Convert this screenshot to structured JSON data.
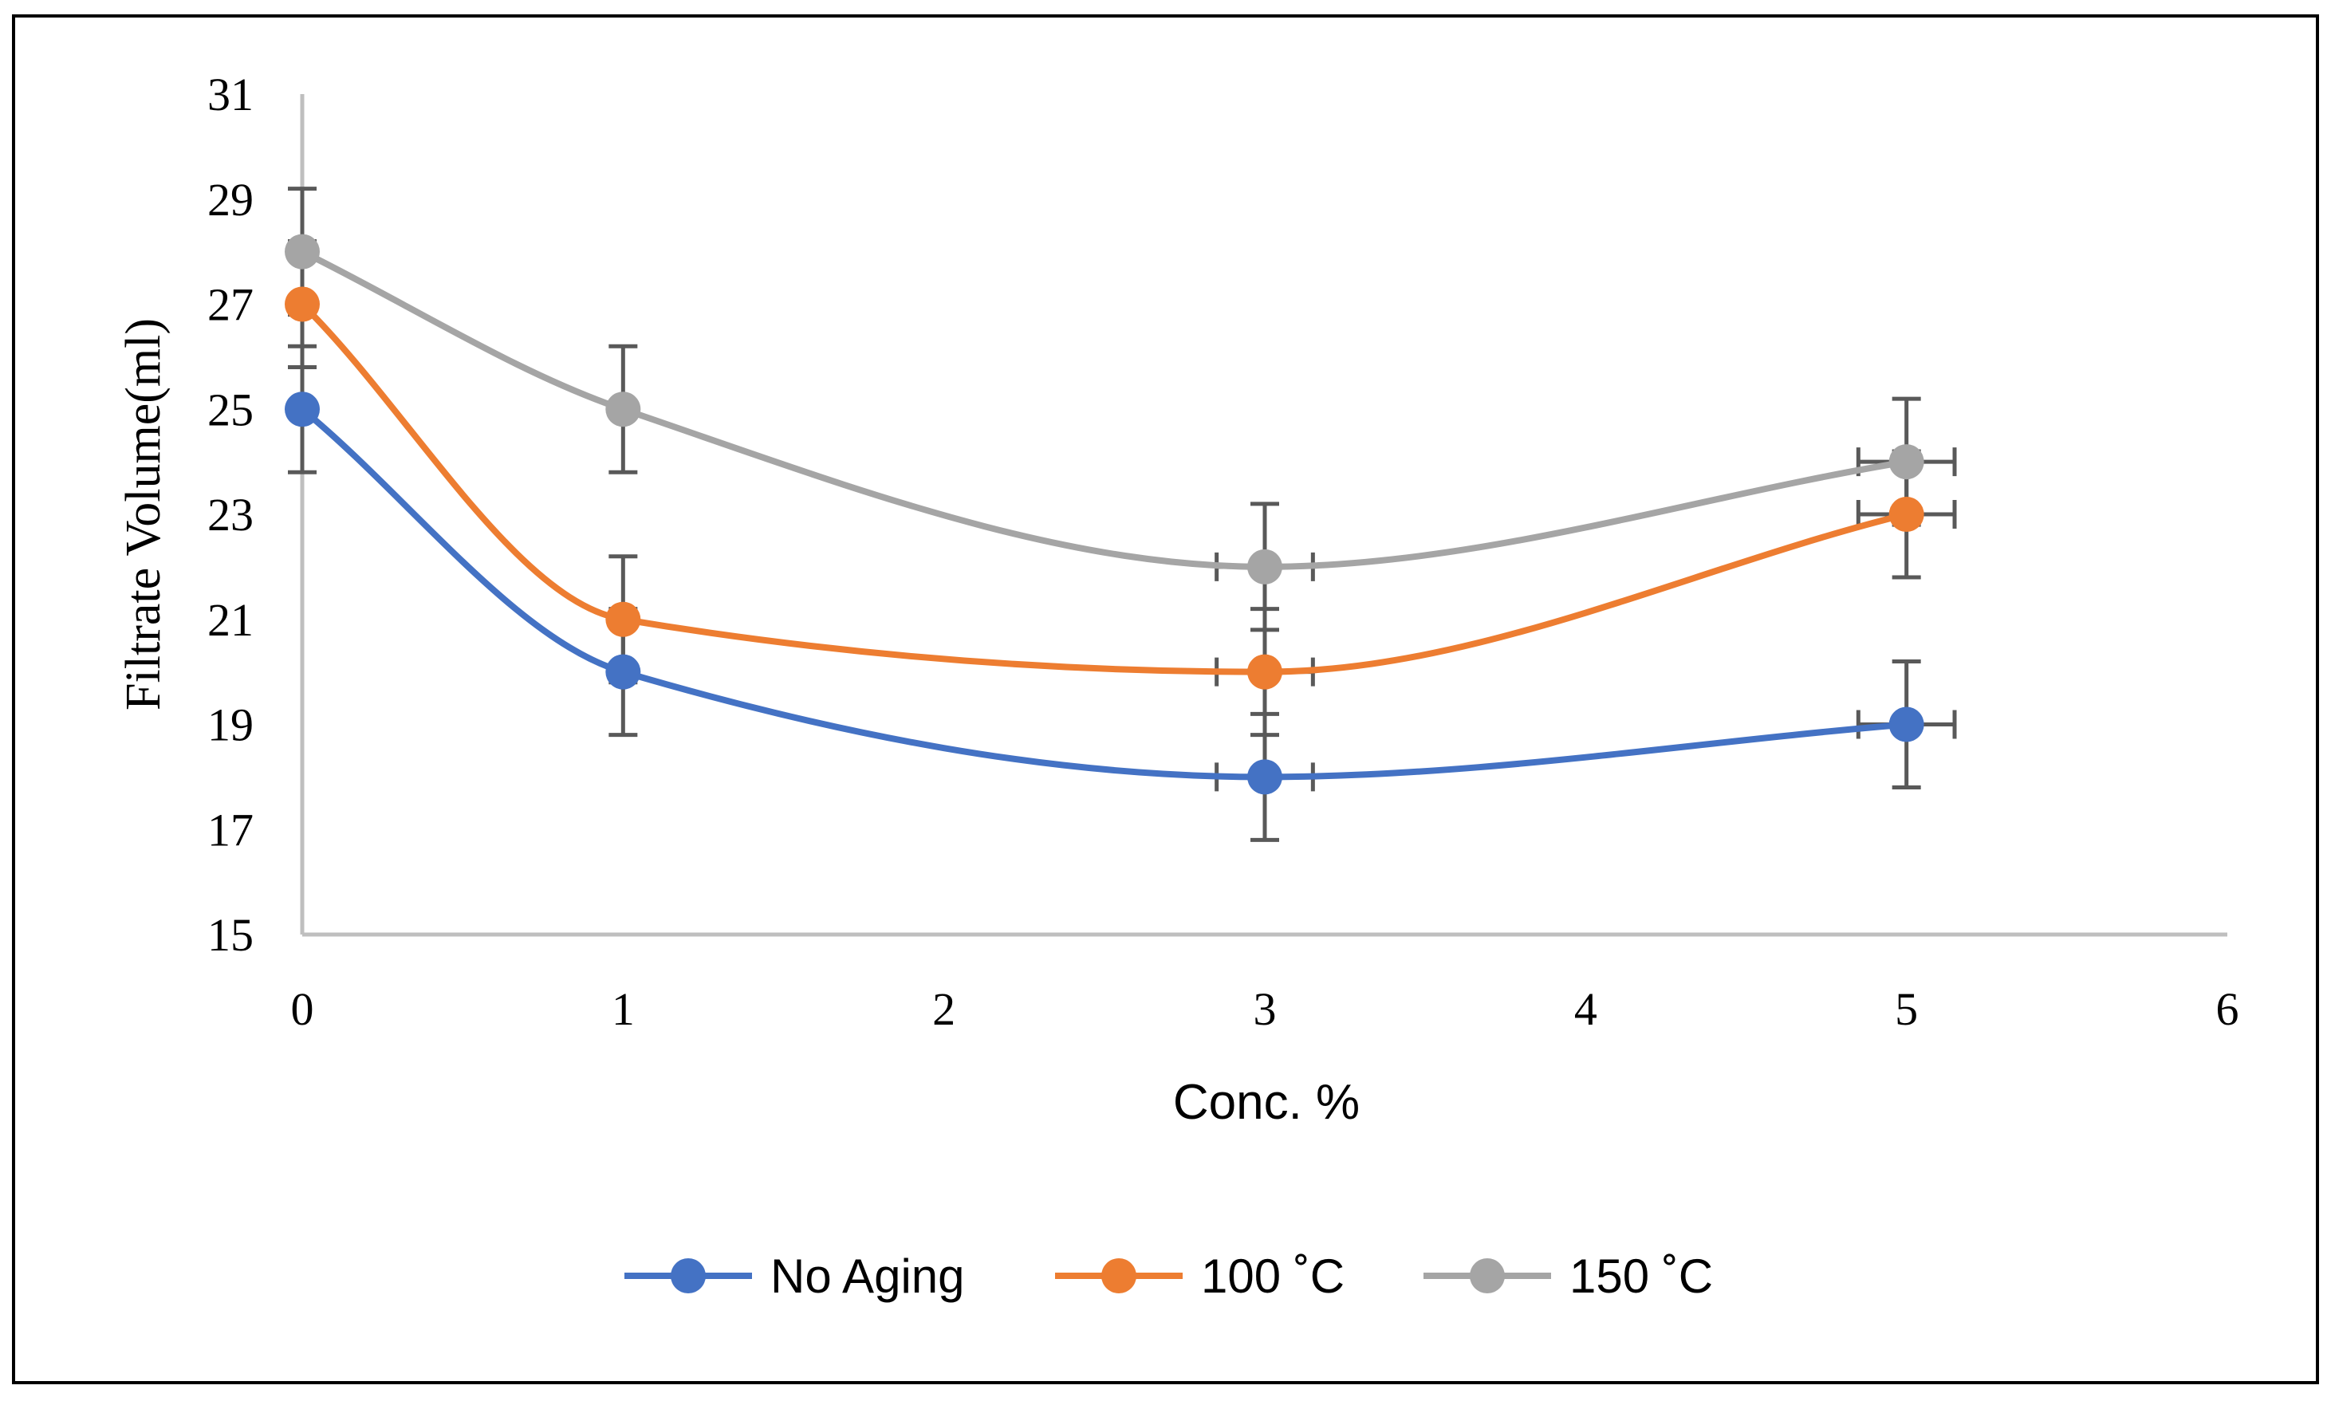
{
  "chart_data": {
    "type": "line",
    "title": "",
    "xlabel": "Conc. %",
    "ylabel": "Filtrate Volume(ml)",
    "xlim": [
      0,
      6
    ],
    "ylim": [
      15,
      31
    ],
    "x_ticks": [
      "0",
      "1",
      "2",
      "3",
      "4",
      "5",
      "6"
    ],
    "y_ticks": [
      "15",
      "17",
      "19",
      "21",
      "23",
      "25",
      "27",
      "29",
      "31"
    ],
    "x": [
      0,
      1,
      3,
      5
    ],
    "smooth": true,
    "grid": false,
    "legend_position": "bottom",
    "error_bars": {
      "y_error": 1.2,
      "x_error": 0.15,
      "x_error_shown_at": [
        3,
        5
      ]
    },
    "series": [
      {
        "name": "No Aging",
        "color": "#4472C4",
        "values": [
          25,
          20,
          18,
          19
        ]
      },
      {
        "name": "100 ˚C",
        "color": "#ED7D31",
        "values": [
          27,
          21,
          20,
          23
        ]
      },
      {
        "name": "150 ˚C",
        "color": "#A5A5A5",
        "values": [
          28,
          25,
          22,
          24
        ]
      }
    ],
    "error_bar_color": "#595959",
    "axis_color": "#BFBFBF"
  }
}
